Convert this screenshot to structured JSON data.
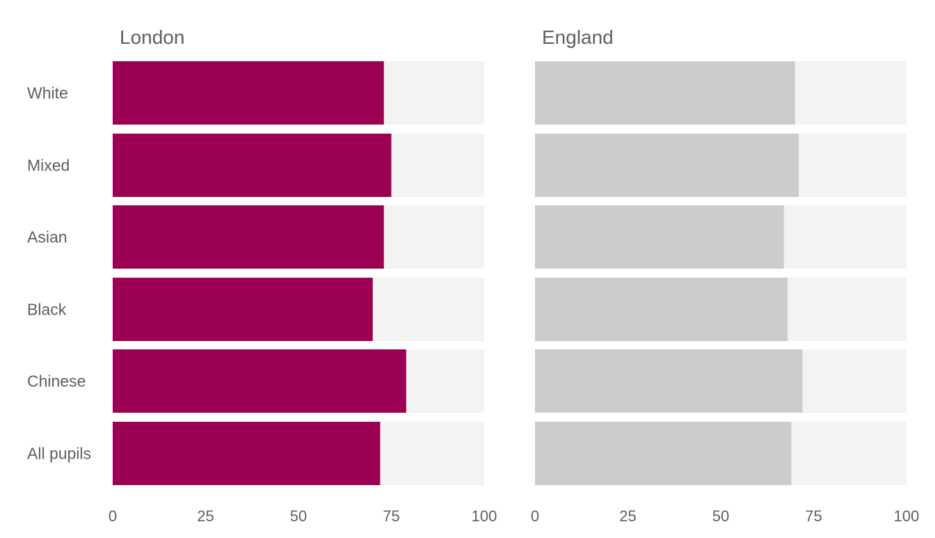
{
  "chart_data": {
    "type": "bar",
    "orientation": "horizontal",
    "categories": [
      "White",
      "Mixed",
      "Asian",
      "Black",
      "Chinese",
      "All pupils"
    ],
    "panels": [
      {
        "title": "London",
        "color": "#9c0052",
        "values": [
          73,
          75,
          73,
          70,
          79,
          72
        ]
      },
      {
        "title": "England",
        "color": "#cccccc",
        "values": [
          70,
          71,
          67,
          68,
          72,
          69
        ]
      }
    ],
    "xlim": [
      0,
      100
    ],
    "xticks": [
      0,
      25,
      50,
      75,
      100
    ],
    "background_track_color": "#f3f3f3",
    "text_color": "#5f5f5f",
    "grid": false,
    "legend": "none"
  }
}
